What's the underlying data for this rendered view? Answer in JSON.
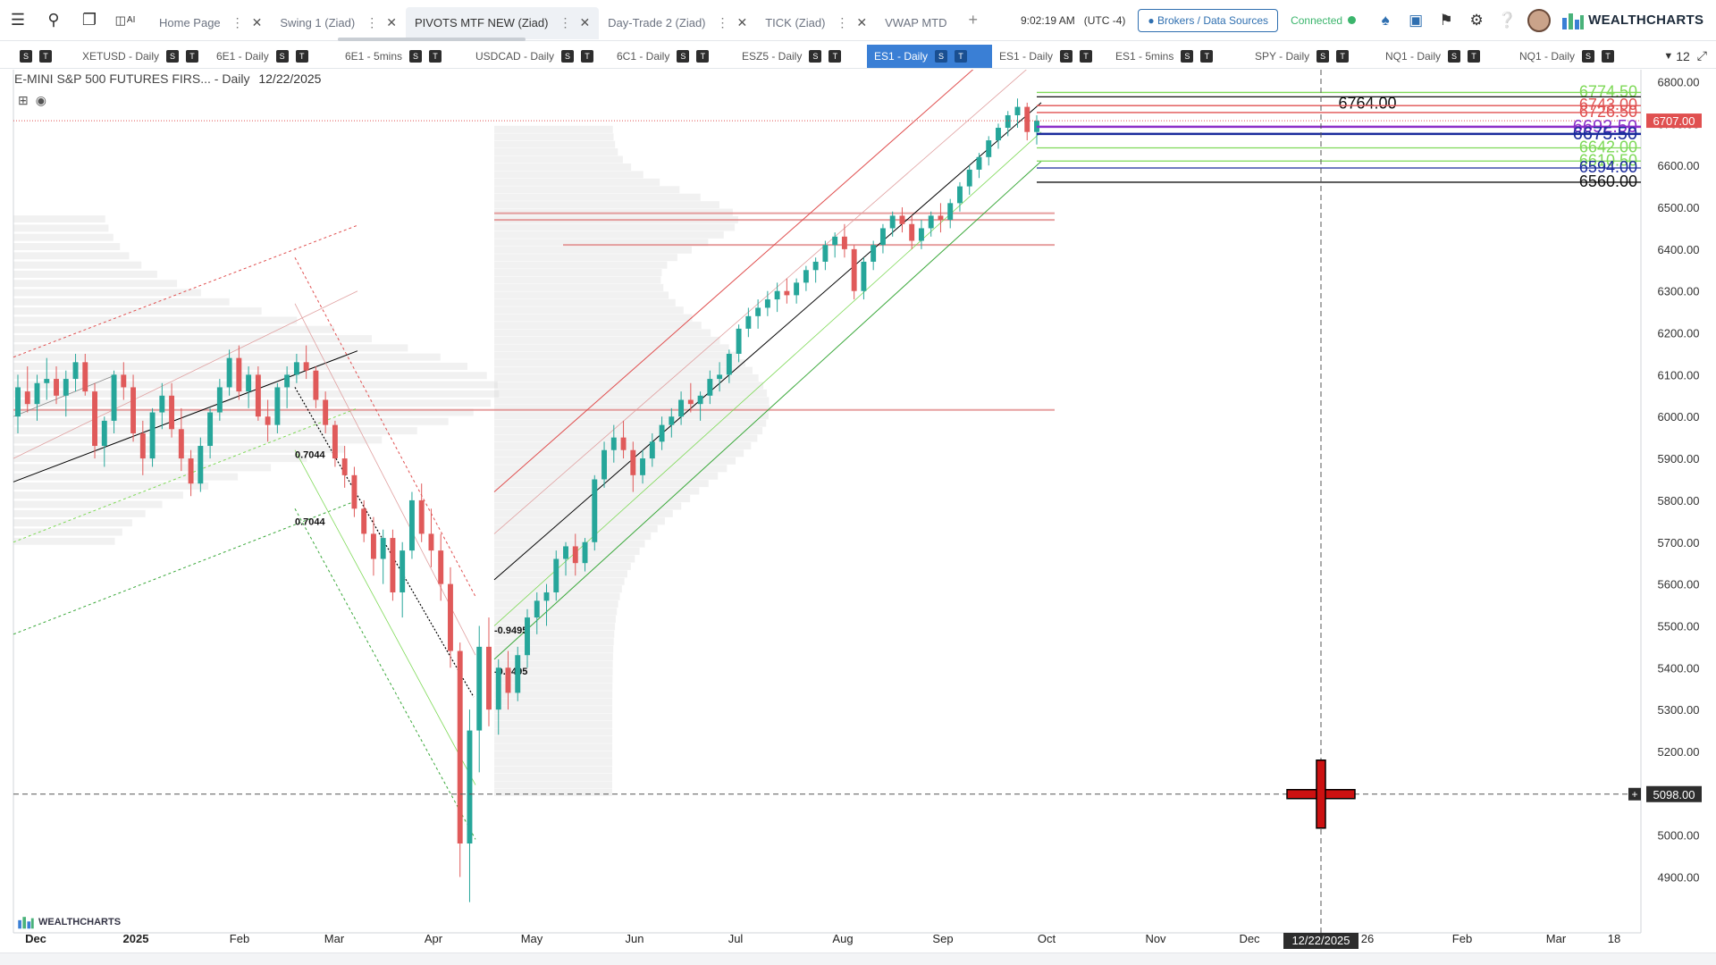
{
  "topbar": {
    "tabs": [
      {
        "label": "Home Page",
        "active": false
      },
      {
        "label": "Swing 1 (Ziad)",
        "active": false
      },
      {
        "label": "PIVOTS MTF NEW (Ziad)",
        "active": true
      },
      {
        "label": "Day-Trade 2 (Ziad)",
        "active": false
      },
      {
        "label": "TICK (Ziad)",
        "active": false
      },
      {
        "label": "VWAP MTD",
        "active": false
      }
    ],
    "ai_label": "AI",
    "time": "9:02:19 AM",
    "timezone": "(UTC -4)",
    "brokers_label": "Brokers / Data Sources",
    "connected_label": "Connected",
    "brand": "WEALTHCHARTS"
  },
  "chart_tabs": {
    "items": [
      {
        "label": "XETUSD - Daily",
        "active": false
      },
      {
        "label": "6E1 - Daily",
        "active": false
      },
      {
        "label": "6E1 - 5mins",
        "active": false
      },
      {
        "label": "USDCAD - Daily",
        "active": false
      },
      {
        "label": "6C1 - Daily",
        "active": false
      },
      {
        "label": "ESZ5 - Daily",
        "active": false
      },
      {
        "label": "ES1 - Daily",
        "active": true
      },
      {
        "label": "ES1 - Daily",
        "active": false
      },
      {
        "label": "ES1 - 5mins",
        "active": false
      },
      {
        "label": "SPY - Daily",
        "active": false
      },
      {
        "label": "NQ1 - Daily",
        "active": false
      },
      {
        "label": "NQ1 - Daily",
        "active": false
      }
    ],
    "s_label": "S",
    "t_label": "T",
    "count": "12"
  },
  "chart_header": {
    "title": "E-MINI S&P 500 FUTURES FIRS...",
    "interval": "- Daily",
    "date": "12/22/2025"
  },
  "watermark": "WEALTHCHARTS",
  "chart_data": {
    "type": "candlestick",
    "symbol": "ES1",
    "ylim": [
      4820,
      6860
    ],
    "y_ticks": [
      4900,
      5000,
      5100,
      5200,
      5300,
      5400,
      5500,
      5600,
      5700,
      5800,
      5900,
      6000,
      6100,
      6200,
      6300,
      6400,
      6500,
      6600,
      6700,
      6800
    ],
    "y_tick_labels": [
      "4900.00",
      "5000.00",
      "5100.00",
      "5200.00",
      "5300.00",
      "5400.00",
      "5500.00",
      "5600.00",
      "5700.00",
      "5800.00",
      "5900.00",
      "6000.00",
      "6100.00",
      "6200.00",
      "6300.00",
      "6400.00",
      "6500.00",
      "6600.00",
      "6700.00",
      "6800.00"
    ],
    "x_ticks": [
      {
        "label": "Dec",
        "bold": true
      },
      {
        "label": "2025",
        "bold": true
      },
      {
        "label": "Feb",
        "bold": false
      },
      {
        "label": "Mar",
        "bold": false
      },
      {
        "label": "Apr",
        "bold": false
      },
      {
        "label": "May",
        "bold": false
      },
      {
        "label": "Jun",
        "bold": false
      },
      {
        "label": "Jul",
        "bold": false
      },
      {
        "label": "Aug",
        "bold": false
      },
      {
        "label": "Sep",
        "bold": false
      },
      {
        "label": "Oct",
        "bold": false
      },
      {
        "label": "Nov",
        "bold": false
      },
      {
        "label": "Dec",
        "bold": false
      },
      {
        "label": "26",
        "bold": false
      },
      {
        "label": "Feb",
        "bold": false
      },
      {
        "label": "Mar",
        "bold": false
      },
      {
        "label": "18",
        "bold": false
      }
    ],
    "last_price": "6707.00",
    "crosshair_price": "5098.00",
    "crosshair_date": "12/22/2025",
    "pivot_levels": [
      {
        "label": "6774.50",
        "value": 6774.5,
        "color": "#7ed957"
      },
      {
        "label": "6764.00",
        "value": 6764.0,
        "color": "#111111"
      },
      {
        "label": "6743.00",
        "value": 6743.0,
        "color": "#e05050"
      },
      {
        "label": "6726.50",
        "value": 6726.5,
        "color": "#e05050"
      },
      {
        "label": "6692.50",
        "value": 6692.5,
        "color": "#8b2fc9"
      },
      {
        "label": "6675.50",
        "value": 6675.5,
        "color": "#1a2a9c"
      },
      {
        "label": "6642.00",
        "value": 6642.0,
        "color": "#7ed957"
      },
      {
        "label": "6610.50",
        "value": 6610.5,
        "color": "#7ed957"
      },
      {
        "label": "6594.00",
        "value": 6594.0,
        "color": "#1a2a9c"
      },
      {
        "label": "6560.00",
        "value": 6560.0,
        "color": "#111111"
      }
    ],
    "fib_labels": [
      "0.7044",
      "0.7044",
      "-0.9495",
      "-0.9495"
    ],
    "candles": [
      [
        6000,
        6100,
        5960,
        6070
      ],
      [
        6060,
        6120,
        6010,
        6030
      ],
      [
        6030,
        6100,
        5990,
        6080
      ],
      [
        6080,
        6140,
        6040,
        6090
      ],
      [
        6090,
        6120,
        6030,
        6050
      ],
      [
        6050,
        6110,
        6000,
        6090
      ],
      [
        6090,
        6150,
        6060,
        6130
      ],
      [
        6130,
        6150,
        6050,
        6060
      ],
      [
        6060,
        6080,
        5900,
        5930
      ],
      [
        5930,
        6000,
        5880,
        5990
      ],
      [
        5990,
        6110,
        5960,
        6100
      ],
      [
        6100,
        6130,
        6040,
        6070
      ],
      [
        6070,
        6100,
        5940,
        5960
      ],
      [
        5960,
        5990,
        5860,
        5900
      ],
      [
        5900,
        6020,
        5880,
        6010
      ],
      [
        6010,
        6080,
        5970,
        6050
      ],
      [
        6050,
        6080,
        5950,
        5970
      ],
      [
        5970,
        6020,
        5870,
        5900
      ],
      [
        5900,
        5920,
        5810,
        5840
      ],
      [
        5840,
        5950,
        5820,
        5930
      ],
      [
        5930,
        6020,
        5900,
        6010
      ],
      [
        6010,
        6090,
        5990,
        6070
      ],
      [
        6070,
        6160,
        6050,
        6140
      ],
      [
        6140,
        6170,
        6040,
        6060
      ],
      [
        6060,
        6120,
        6020,
        6100
      ],
      [
        6100,
        6120,
        5990,
        6000
      ],
      [
        6000,
        6040,
        5940,
        5980
      ],
      [
        5980,
        6080,
        5960,
        6070
      ],
      [
        6070,
        6120,
        6020,
        6100
      ],
      [
        6100,
        6150,
        6080,
        6130
      ],
      [
        6130,
        6170,
        6090,
        6110
      ],
      [
        6110,
        6120,
        6020,
        6040
      ],
      [
        6040,
        6060,
        5960,
        5980
      ],
      [
        5980,
        5990,
        5880,
        5900
      ],
      [
        5900,
        5930,
        5830,
        5860
      ],
      [
        5860,
        5880,
        5760,
        5780
      ],
      [
        5780,
        5800,
        5700,
        5720
      ],
      [
        5720,
        5760,
        5620,
        5660
      ],
      [
        5660,
        5730,
        5600,
        5710
      ],
      [
        5710,
        5730,
        5560,
        5580
      ],
      [
        5580,
        5700,
        5520,
        5680
      ],
      [
        5680,
        5820,
        5660,
        5800
      ],
      [
        5800,
        5840,
        5700,
        5720
      ],
      [
        5720,
        5780,
        5640,
        5680
      ],
      [
        5680,
        5720,
        5560,
        5600
      ],
      [
        5600,
        5640,
        5400,
        5440
      ],
      [
        5440,
        5460,
        4900,
        4980
      ],
      [
        4980,
        5300,
        4840,
        5250
      ],
      [
        5250,
        5500,
        5150,
        5450
      ],
      [
        5450,
        5520,
        5260,
        5300
      ],
      [
        5300,
        5420,
        5240,
        5400
      ],
      [
        5400,
        5440,
        5300,
        5340
      ],
      [
        5340,
        5450,
        5320,
        5430
      ],
      [
        5430,
        5540,
        5400,
        5520
      ],
      [
        5520,
        5580,
        5480,
        5560
      ],
      [
        5560,
        5600,
        5500,
        5580
      ],
      [
        5580,
        5680,
        5560,
        5660
      ],
      [
        5660,
        5700,
        5620,
        5690
      ],
      [
        5690,
        5720,
        5620,
        5650
      ],
      [
        5650,
        5710,
        5630,
        5700
      ],
      [
        5700,
        5860,
        5680,
        5850
      ],
      [
        5850,
        5940,
        5830,
        5920
      ],
      [
        5920,
        5980,
        5890,
        5950
      ],
      [
        5950,
        5990,
        5900,
        5920
      ],
      [
        5920,
        5940,
        5820,
        5860
      ],
      [
        5860,
        5920,
        5840,
        5900
      ],
      [
        5900,
        5960,
        5880,
        5940
      ],
      [
        5940,
        6000,
        5920,
        5980
      ],
      [
        5980,
        6020,
        5950,
        6000
      ],
      [
        6000,
        6060,
        5980,
        6040
      ],
      [
        6040,
        6080,
        6010,
        6030
      ],
      [
        6030,
        6060,
        5990,
        6050
      ],
      [
        6050,
        6110,
        6030,
        6090
      ],
      [
        6090,
        6130,
        6060,
        6100
      ],
      [
        6100,
        6160,
        6080,
        6150
      ],
      [
        6150,
        6220,
        6130,
        6210
      ],
      [
        6210,
        6260,
        6190,
        6240
      ],
      [
        6240,
        6280,
        6210,
        6260
      ],
      [
        6260,
        6300,
        6240,
        6280
      ],
      [
        6280,
        6320,
        6250,
        6300
      ],
      [
        6300,
        6330,
        6270,
        6290
      ],
      [
        6290,
        6330,
        6270,
        6320
      ],
      [
        6320,
        6360,
        6300,
        6350
      ],
      [
        6350,
        6380,
        6320,
        6370
      ],
      [
        6370,
        6420,
        6350,
        6410
      ],
      [
        6410,
        6440,
        6380,
        6430
      ],
      [
        6430,
        6460,
        6380,
        6400
      ],
      [
        6400,
        6410,
        6280,
        6300
      ],
      [
        6300,
        6380,
        6280,
        6370
      ],
      [
        6370,
        6420,
        6350,
        6410
      ],
      [
        6410,
        6460,
        6390,
        6450
      ],
      [
        6450,
        6490,
        6430,
        6480
      ],
      [
        6480,
        6500,
        6440,
        6460
      ],
      [
        6460,
        6480,
        6400,
        6420
      ],
      [
        6420,
        6470,
        6400,
        6450
      ],
      [
        6450,
        6490,
        6430,
        6480
      ],
      [
        6480,
        6510,
        6440,
        6470
      ],
      [
        6470,
        6520,
        6450,
        6510
      ],
      [
        6510,
        6560,
        6490,
        6550
      ],
      [
        6550,
        6600,
        6530,
        6590
      ],
      [
        6590,
        6630,
        6570,
        6620
      ],
      [
        6620,
        6670,
        6600,
        6660
      ],
      [
        6660,
        6700,
        6640,
        6690
      ],
      [
        6690,
        6730,
        6670,
        6720
      ],
      [
        6720,
        6760,
        6690,
        6740
      ],
      [
        6740,
        6750,
        6660,
        6680
      ],
      [
        6680,
        6720,
        6650,
        6707
      ]
    ]
  }
}
